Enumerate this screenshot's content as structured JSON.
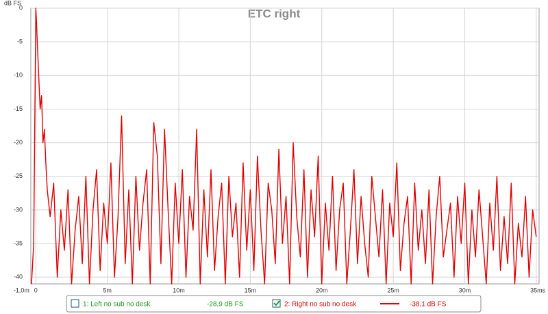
{
  "chart_data": {
    "type": "line",
    "title": "ETC right",
    "y_label": "dB FS",
    "x_label": "s",
    "x": [
      -0.3,
      -0.15,
      0,
      0.05,
      0.1,
      0.2,
      0.3,
      0.4,
      0.5,
      0.6,
      0.7,
      0.8,
      1.0,
      1.25,
      1.5,
      1.75,
      2,
      2.25,
      2.5,
      2.75,
      3,
      3.25,
      3.5,
      3.75,
      4,
      4.25,
      4.5,
      4.75,
      5,
      5.25,
      5.5,
      5.75,
      6,
      6.25,
      6.5,
      6.75,
      7,
      7.25,
      7.5,
      7.75,
      8,
      8.25,
      8.5,
      8.75,
      9,
      9.25,
      9.5,
      9.75,
      10,
      10.25,
      10.5,
      10.75,
      11,
      11.25,
      11.5,
      11.75,
      12,
      12.25,
      12.5,
      12.75,
      13,
      13.25,
      13.5,
      13.75,
      14,
      14.25,
      14.5,
      14.75,
      15,
      15.25,
      15.5,
      15.75,
      16,
      16.25,
      16.5,
      16.75,
      17,
      17.25,
      17.5,
      17.75,
      18,
      18.25,
      18.5,
      18.75,
      19,
      19.25,
      19.5,
      19.75,
      20,
      20.25,
      20.5,
      20.75,
      21,
      21.25,
      21.5,
      21.75,
      22,
      22.25,
      22.5,
      22.75,
      23,
      23.25,
      23.5,
      23.75,
      24,
      24.25,
      24.5,
      24.75,
      25,
      25.25,
      25.5,
      25.75,
      26,
      26.25,
      26.5,
      26.75,
      27,
      27.25,
      27.5,
      27.75,
      28,
      28.25,
      28.5,
      28.75,
      29,
      29.25,
      29.5,
      29.75,
      30,
      30.25,
      30.5,
      30.75,
      31,
      31.25,
      31.5,
      31.75,
      32,
      32.25,
      32.5,
      32.75,
      33,
      33.25,
      33.5,
      33.75,
      34,
      34.25,
      34.5,
      34.75,
      35
    ],
    "series": [
      {
        "name": "2: Right no sub no desk",
        "reading": "-38,1 dB FS",
        "checked": true,
        "color": "#e00000",
        "values": [
          -41,
          -35,
          0,
          -2,
          -5,
          -10,
          -15,
          -13,
          -20,
          -18,
          -23,
          -27,
          -31,
          -26,
          -40,
          -30,
          -36,
          -27,
          -41,
          -33,
          -28,
          -38,
          -25,
          -41,
          -30,
          -24,
          -39,
          -29,
          -35,
          -23,
          -40,
          -31,
          -16,
          -38,
          -27,
          -41,
          -25,
          -36,
          -29,
          -24,
          -41,
          -17,
          -22,
          -38,
          -18,
          -30,
          -41,
          -26,
          -35,
          -24,
          -40,
          -28,
          -33,
          -18,
          -41,
          -27,
          -37,
          -24,
          -39,
          -31,
          -26,
          -41,
          -25,
          -34,
          -29,
          -40,
          -23,
          -36,
          -27,
          -39,
          -22,
          -33,
          -41,
          -26,
          -30,
          -38,
          -21,
          -35,
          -28,
          -41,
          -20,
          -31,
          -37,
          -24,
          -40,
          -27,
          -34,
          -22,
          -41,
          -29,
          -36,
          -25,
          -39,
          -30,
          -26,
          -41,
          -33,
          -24,
          -38,
          -28,
          -35,
          -40,
          -25,
          -31,
          -37,
          -27,
          -41,
          -29,
          -34,
          -23,
          -39,
          -32,
          -28,
          -41,
          -26,
          -36,
          -30,
          -38,
          -27,
          -41,
          -31,
          -25,
          -37,
          -33,
          -29,
          -40,
          -28,
          -35,
          -26,
          -41,
          -30,
          -37,
          -27,
          -34,
          -41,
          -29,
          -36,
          -25,
          -39,
          -31,
          -38,
          -26,
          -41,
          -32,
          -37,
          -28,
          -40,
          -30,
          -34
        ]
      }
    ],
    "inactive_series": [
      {
        "name": "1: Left no sub no desk",
        "reading": "-28,9 dB FS",
        "checked": false,
        "color": "#1a9a1a"
      }
    ],
    "xlim": [
      -0.35,
      35.2
    ],
    "xticks": [
      {
        "value": -1,
        "label": "-1,0m"
      },
      0,
      {
        "value": 5,
        "label": "5m"
      },
      {
        "value": 10,
        "label": "10m"
      },
      {
        "value": 15,
        "label": "15m"
      },
      {
        "value": 20,
        "label": "20m"
      },
      {
        "value": 25,
        "label": "25m"
      },
      {
        "value": 30,
        "label": "30m"
      },
      {
        "value": 35,
        "label": "35m"
      }
    ],
    "ylim": [
      -41,
      0
    ],
    "yticks": [
      0,
      -5,
      -10,
      -15,
      -20,
      -25,
      -30,
      -35,
      -40
    ],
    "grid": true
  }
}
